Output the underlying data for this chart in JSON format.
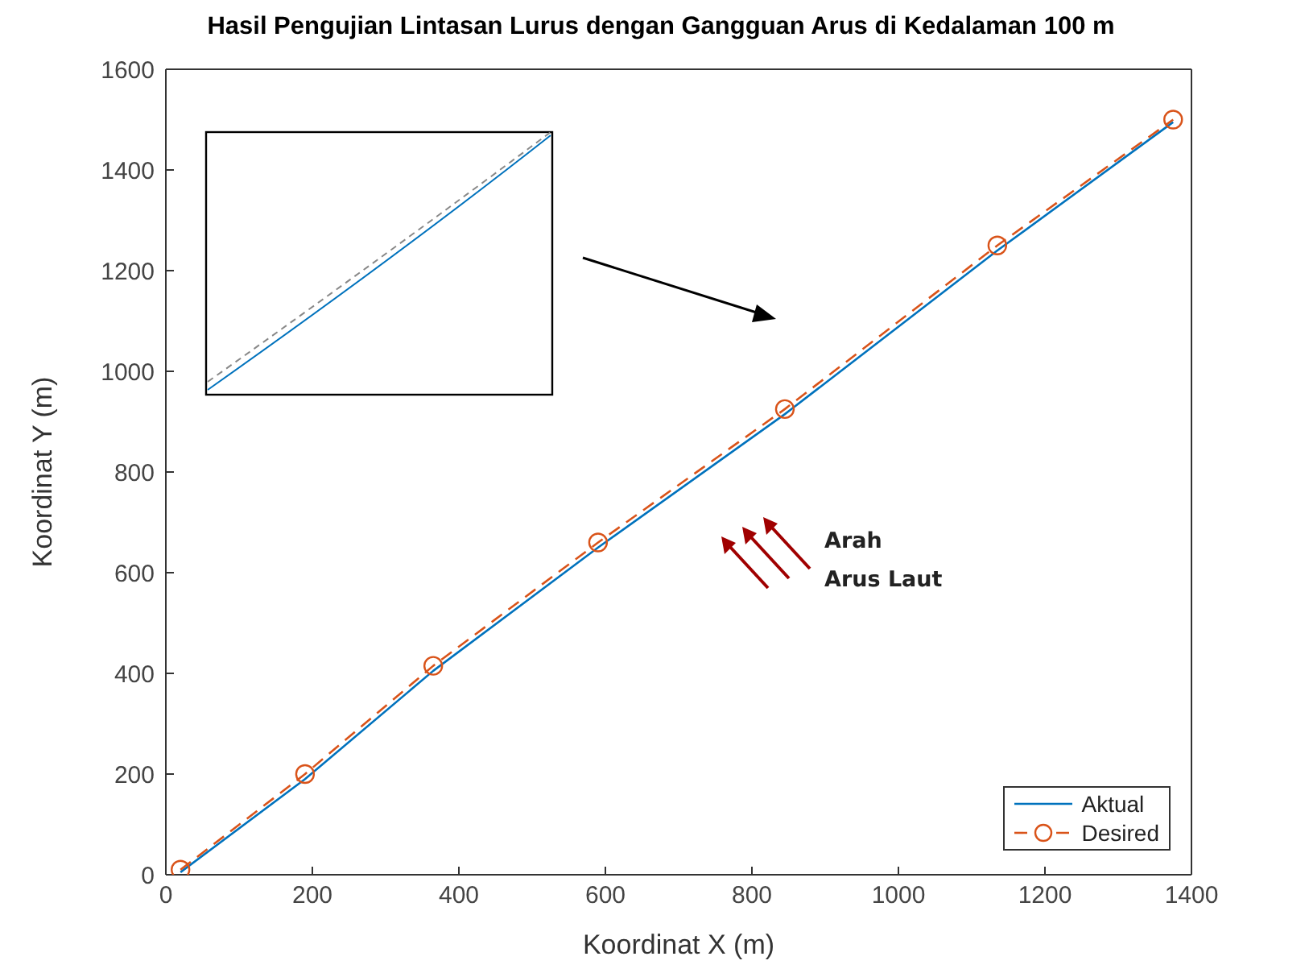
{
  "chart_data": {
    "type": "line",
    "title": "Hasil Pengujian Lintasan Lurus dengan Gangguan Arus di Kedalaman 100 m",
    "xlabel": "Koordinat X (m)",
    "ylabel": "Koordinat Y (m)",
    "xlim": [
      0,
      1400
    ],
    "xticks": [
      0,
      200,
      400,
      600,
      800,
      1000,
      1200,
      1400
    ],
    "ylim": [
      0,
      1600
    ],
    "yticks": [
      0,
      200,
      400,
      600,
      800,
      1000,
      1200,
      1400,
      1600
    ],
    "grid": false,
    "legend": "bottom right",
    "annotations": [
      "Arah",
      "Arus Laut"
    ],
    "series": [
      {
        "name": "Aktual",
        "color": "#0072bd",
        "marker": "none",
        "line_style": "solid",
        "x": [
          20,
          190,
          365,
          590,
          845,
          1135,
          1375
        ],
        "values": [
          5,
          190,
          405,
          650,
          915,
          1240,
          1495
        ]
      },
      {
        "name": "Desired",
        "color": "#d95319",
        "marker": "circle",
        "line_style": "dashed",
        "x": [
          20,
          190,
          365,
          590,
          845,
          1135,
          1375
        ],
        "values": [
          10,
          200,
          415,
          660,
          925,
          1250,
          1500
        ]
      }
    ]
  }
}
